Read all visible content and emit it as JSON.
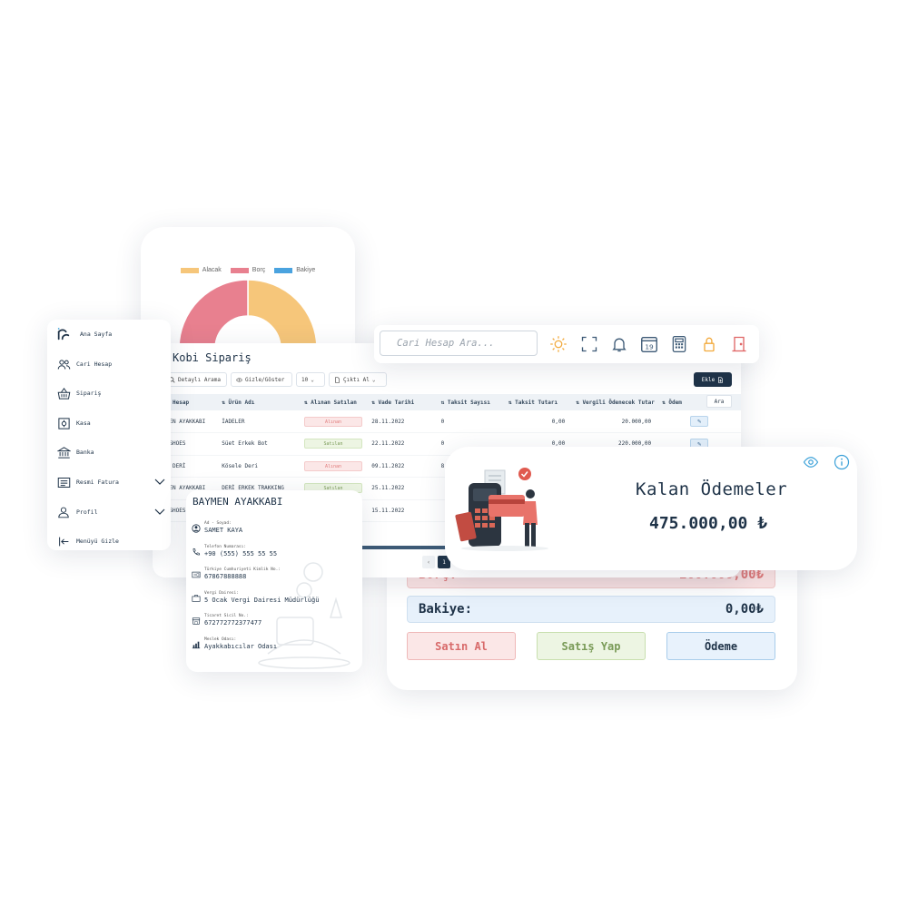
{
  "chart": {
    "legend": [
      {
        "label": "Alacak",
        "color": "#f6c67a"
      },
      {
        "label": "Borç",
        "color": "#e8808f"
      },
      {
        "label": "Bakiye",
        "color": "#4aa3df"
      }
    ]
  },
  "chart_data": {
    "type": "pie",
    "categories": [
      "Alacak",
      "Borç",
      "Bakiye"
    ],
    "values": [
      50,
      50,
      0
    ],
    "colors": [
      "#f6c67a",
      "#e8808f",
      "#4aa3df"
    ],
    "legend_position": "top"
  },
  "topbar": {
    "search_placeholder": "Cari Hesap Ara...",
    "icons": [
      "sun-icon",
      "fullscreen-icon",
      "bell-icon",
      "calendar-icon",
      "calculator-icon",
      "lock-icon",
      "logout-door-icon"
    ],
    "calendar_day": "19",
    "colors": {
      "sun": "#f2a93b",
      "lock": "#f2a93b",
      "door": "#e06666",
      "default": "#3d5a76"
    }
  },
  "sidebar": {
    "items": [
      {
        "label": "Ana Sayfa",
        "icon": "logo-icon"
      },
      {
        "label": "Cari Hesap",
        "icon": "users-icon"
      },
      {
        "label": "Sipariş",
        "icon": "basket-icon"
      },
      {
        "label": "Kasa",
        "icon": "safe-icon"
      },
      {
        "label": "Banka",
        "icon": "bank-icon"
      },
      {
        "label": "Resmi Fatura",
        "icon": "invoice-icon"
      },
      {
        "label": "Profil",
        "icon": "user-icon"
      },
      {
        "label": "Menüyü Gizle",
        "icon": "collapse-icon"
      }
    ]
  },
  "table": {
    "title": "Kobi Sipariş",
    "toolbar": {
      "search": "Detaylı Arama",
      "toggle": "Gizle/Göster",
      "page_size": "10",
      "export": "Çıktı Al",
      "add": "Ekle",
      "find": "Ara"
    },
    "columns": [
      "Cari Hesap",
      "Ürün Adı",
      "Alınan Satılan",
      "Vade Tarihi",
      "Taksit Sayısı",
      "Taksit Tutarı",
      "Vergili Ödenecek Tutar",
      "Ödem"
    ],
    "rows": [
      {
        "cari": "BAYMEN AYAKKABI",
        "urun": "İADELER",
        "durum": "Alınan",
        "vade": "28.11.2022",
        "taksit_sayisi": "0",
        "taksit_tutari": "0,00",
        "vergili": "20.000,00"
      },
      {
        "cari": "EYN SHOES",
        "urun": "Süet Erkek Bot",
        "durum": "Satılan",
        "vade": "22.11.2022",
        "taksit_sayisi": "0",
        "taksit_tutari": "0,00",
        "vergili": "220.000,00"
      },
      {
        "cari": "SEVİ DERİ",
        "urun": "Kösele Deri",
        "durum": "Alınan",
        "vade": "09.11.2022",
        "taksit_sayisi": "8",
        "taksit_tutari": "",
        "vergili": ""
      },
      {
        "cari": "BAYMEN AYAKKABI",
        "urun": "DERİ ERKEK TRAKKING",
        "durum": "Satılan",
        "vade": "25.11.2022",
        "taksit_sayisi": "",
        "taksit_tutari": "",
        "vergili": ""
      },
      {
        "cari": "EYN SHOES",
        "urun": "",
        "durum": "",
        "vade": "15.11.2022",
        "taksit_sayisi": "",
        "taksit_tutari": "",
        "vergili": ""
      }
    ],
    "pagination": {
      "prev": "‹",
      "current": "1"
    }
  },
  "balance": {
    "borc_label": "Borç:",
    "borc_value": "200.000,00₺",
    "bakiye_label": "Bakiye:",
    "bakiye_value": "0,00₺",
    "buttons": {
      "buy": "Satın Al",
      "sell": "Satış Yap",
      "pay": "Ödeme"
    }
  },
  "contact": {
    "title": "BAYMEN AYAKKABI",
    "fields": [
      {
        "label": "Ad - Soyad:",
        "value": "SAMET KAYA",
        "icon": "person-icon"
      },
      {
        "label": "Telefon Numarası:",
        "value": "+90 (555) 555 55 55",
        "icon": "phone-icon"
      },
      {
        "label": "Türkiye Cumhuriyeti Kimlik No.:",
        "value": "67867888888",
        "icon": "id-card-icon"
      },
      {
        "label": "Vergi Dairesi:",
        "value": "5 Ocak Vergi Dairesi Müdürlüğü",
        "icon": "briefcase-icon"
      },
      {
        "label": "Ticaret Sicil No.:",
        "value": "672772772377477",
        "icon": "store-icon"
      },
      {
        "label": "Meslek Odası:",
        "value": "Ayakkabıcılar Odası",
        "icon": "chart-icon"
      }
    ]
  },
  "payment": {
    "title": "Kalan Ödemeler",
    "amount": "475.000,00 ₺"
  }
}
